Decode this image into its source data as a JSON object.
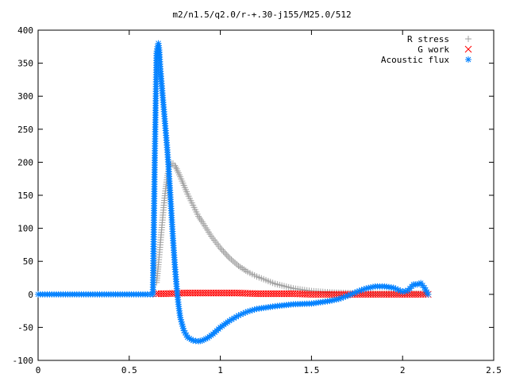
{
  "chart_data": {
    "type": "line",
    "title": "m2/n1.5/q2.0/r-+.30-j155/M25.0/512",
    "xlabel": "",
    "ylabel": "",
    "xlim": [
      0,
      2.5
    ],
    "ylim": [
      -100,
      400
    ],
    "x_ticks": [
      "0",
      "0.5",
      "1",
      "1.5",
      "2",
      "2.5"
    ],
    "y_ticks": [
      "400",
      "350",
      "300",
      "250",
      "200",
      "150",
      "100",
      "50",
      "0",
      "-50",
      "-100"
    ],
    "grid": false,
    "legend_position": "top-right",
    "series": [
      {
        "name": "R stress",
        "marker": "plus",
        "color": "#a0a0a0",
        "x": [
          0.65,
          0.66,
          0.67,
          0.68,
          0.69,
          0.7,
          0.71,
          0.72,
          0.73,
          0.74,
          0.75,
          0.76,
          0.78,
          0.8,
          0.82,
          0.85,
          0.88,
          0.9,
          0.95,
          1.0,
          1.05,
          1.1,
          1.15,
          1.2,
          1.3,
          1.4,
          1.5,
          1.6,
          1.7,
          1.8,
          1.9,
          2.0,
          2.1,
          2.14
        ],
        "y": [
          18,
          45,
          75,
          105,
          135,
          160,
          180,
          193,
          198,
          198,
          195,
          190,
          178,
          165,
          152,
          135,
          118,
          110,
          88,
          70,
          55,
          43,
          34,
          27,
          16,
          9,
          5,
          3,
          2,
          1,
          1,
          1,
          1,
          0
        ]
      },
      {
        "name": "G work",
        "marker": "cross",
        "color": "#ff0000",
        "x": [
          0.65,
          0.7,
          0.8,
          0.9,
          1.0,
          1.1,
          1.2,
          1.3,
          1.4,
          1.5,
          1.6,
          1.7,
          1.8,
          1.9,
          2.0,
          2.1,
          2.14
        ],
        "y": [
          1,
          1,
          2,
          2,
          2,
          2,
          1,
          1,
          1,
          0,
          0,
          0,
          0,
          0,
          0,
          0,
          0
        ]
      },
      {
        "name": "Acoustic flux",
        "marker": "star",
        "color": "#0080ff",
        "x": [
          0.0,
          0.1,
          0.2,
          0.3,
          0.4,
          0.5,
          0.6,
          0.63,
          0.64,
          0.65,
          0.655,
          0.66,
          0.665,
          0.67,
          0.68,
          0.69,
          0.7,
          0.71,
          0.72,
          0.73,
          0.74,
          0.75,
          0.76,
          0.77,
          0.78,
          0.8,
          0.82,
          0.85,
          0.88,
          0.9,
          0.93,
          0.96,
          1.0,
          1.05,
          1.1,
          1.15,
          1.2,
          1.3,
          1.4,
          1.5,
          1.6,
          1.65,
          1.7,
          1.75,
          1.8,
          1.85,
          1.9,
          1.95,
          2.0,
          2.03,
          2.06,
          2.08,
          2.1,
          2.12,
          2.14
        ],
        "y": [
          0,
          0,
          0,
          0,
          0,
          0,
          0,
          0,
          203,
          365,
          375,
          380,
          370,
          345,
          312,
          280,
          248,
          215,
          175,
          130,
          85,
          45,
          12,
          -15,
          -35,
          -55,
          -65,
          -70,
          -71,
          -70,
          -66,
          -60,
          -50,
          -40,
          -32,
          -26,
          -22,
          -18,
          -15,
          -14,
          -10,
          -7,
          -2,
          4,
          9,
          12,
          12,
          10,
          4,
          6,
          15,
          15,
          17,
          10,
          0
        ]
      }
    ]
  }
}
